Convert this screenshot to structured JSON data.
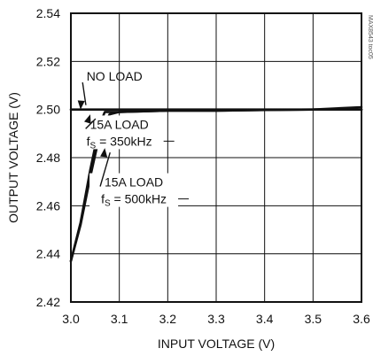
{
  "chart_data": {
    "type": "line",
    "xlabel": "INPUT VOLTAGE (V)",
    "ylabel": "OUTPUT VOLTAGE (V)",
    "xlim": [
      3.0,
      3.6
    ],
    "ylim": [
      2.42,
      2.54
    ],
    "xticks": [
      "3.0",
      "3.1",
      "3.2",
      "3.3",
      "3.4",
      "3.5",
      "3.6"
    ],
    "yticks": [
      "2.54",
      "2.52",
      "2.50",
      "2.48",
      "2.46",
      "2.44",
      "2.42"
    ],
    "grid": true,
    "figure_id": "MAX8543 toc05",
    "series": [
      {
        "name": "NO LOAD",
        "x": [
          3.0,
          3.1,
          3.2,
          3.3,
          3.4,
          3.5,
          3.6
        ],
        "y": [
          2.5,
          2.5,
          2.5,
          2.5,
          2.5,
          2.5,
          2.5
        ]
      },
      {
        "name": "15A LOAD fS = 350kHz",
        "x": [
          3.0,
          3.02,
          3.04,
          3.06,
          3.07,
          3.1,
          3.2,
          3.3,
          3.4,
          3.5,
          3.6
        ],
        "y": [
          2.437,
          2.453,
          2.475,
          2.494,
          2.499,
          2.499,
          2.4995,
          2.4995,
          2.4998,
          2.5,
          2.501
        ]
      },
      {
        "name": "15A LOAD fS = 500kHz",
        "x": [
          3.0,
          3.02,
          3.04,
          3.06,
          3.08,
          3.1,
          3.2,
          3.3,
          3.4,
          3.5,
          3.6
        ],
        "y": [
          2.437,
          2.452,
          2.472,
          2.49,
          2.498,
          2.499,
          2.4995,
          2.4995,
          2.4998,
          2.5,
          2.5
        ]
      }
    ],
    "annotations": [
      {
        "text": "NO LOAD",
        "x": 3.09,
        "y": 2.512,
        "target": [
          3.02,
          2.5
        ]
      },
      {
        "text": "15A LOAD",
        "sub_prefix": "f",
        "sub": "S",
        "sub_suffix": " = 350kHz",
        "x": 3.1,
        "y": 2.492,
        "target": [
          3.04,
          2.498
        ]
      },
      {
        "text": "15A LOAD",
        "sub_prefix": "f",
        "sub": "S",
        "sub_suffix": " = 500kHz",
        "x": 3.13,
        "y": 2.468,
        "target": [
          3.07,
          2.484
        ]
      }
    ]
  }
}
